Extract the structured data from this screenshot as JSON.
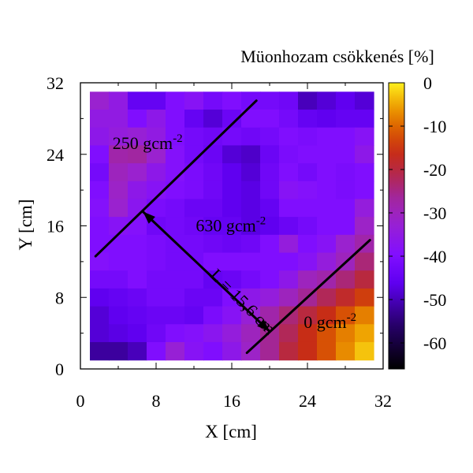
{
  "chart_data": {
    "type": "heatmap",
    "title": "",
    "xlabel": "X [cm]",
    "ylabel": "Y [cm]",
    "xlim": [
      0,
      32
    ],
    "ylim": [
      0,
      32
    ],
    "xticks": [
      "0",
      "8",
      "16",
      "24",
      "32"
    ],
    "yticks": [
      "0",
      "8",
      "16",
      "24",
      "32"
    ],
    "colorbar": {
      "label": "Müonhozam csökkenés [%]",
      "range": [
        -66,
        0
      ],
      "ticks": [
        "0",
        "-10",
        "-20",
        "-30",
        "-40",
        "-50",
        "-60"
      ]
    },
    "cell_size_cm": 2,
    "x_origin_cm": 1,
    "y_origin_cm": 1,
    "grid_cols": 15,
    "grid_rows": 15,
    "values_rows_top_to_bottom": [
      [
        -32,
        -35,
        -45,
        -45,
        -40,
        -38,
        -42,
        -40,
        -42,
        -42,
        -43,
        -50,
        -48,
        -46,
        -48
      ],
      [
        -35,
        -35,
        -40,
        -36,
        -40,
        -45,
        -48,
        -44,
        -40,
        -40,
        -42,
        -45,
        -46,
        -45,
        -45
      ],
      [
        -36,
        -34,
        -33,
        -35,
        -40,
        -42,
        -43,
        -42,
        -43,
        -42,
        -40,
        -41,
        -40,
        -40,
        -38
      ],
      [
        -40,
        -28,
        -27,
        -32,
        -39,
        -42,
        -44,
        -48,
        -49,
        -44,
        -41,
        -40,
        -40,
        -40,
        -36
      ],
      [
        -42,
        -30,
        -32,
        -36,
        -39,
        -41,
        -43,
        -46,
        -48,
        -43,
        -40,
        -42,
        -40,
        -41,
        -40
      ],
      [
        -40,
        -31,
        -36,
        -38,
        -40,
        -41,
        -43,
        -46,
        -47,
        -43,
        -38,
        -39,
        -40,
        -41,
        -40
      ],
      [
        -39,
        -32,
        -37,
        -41,
        -42,
        -44,
        -44,
        -46,
        -47,
        -45,
        -40,
        -40,
        -40,
        -40,
        -34
      ],
      [
        -40,
        -38,
        -39,
        -43,
        -42,
        -43,
        -45,
        -45,
        -47,
        -46,
        -44,
        -42,
        -40,
        -40,
        -31
      ],
      [
        -40,
        -40,
        -40,
        -41,
        -42,
        -42,
        -43,
        -44,
        -43,
        -40,
        -34,
        -40,
        -38,
        -32,
        -28
      ],
      [
        -39,
        -40,
        -40,
        -41,
        -42,
        -42,
        -40,
        -40,
        -40,
        -40,
        -40,
        -38,
        -34,
        -30,
        -24
      ],
      [
        -42,
        -42,
        -40,
        -42,
        -42,
        -42,
        -45,
        -44,
        -42,
        -40,
        -36,
        -30,
        -28,
        -24,
        -20
      ],
      [
        -46,
        -45,
        -44,
        -42,
        -42,
        -44,
        -44,
        -40,
        -36,
        -34,
        -30,
        -26,
        -22,
        -18,
        -14
      ],
      [
        -48,
        -46,
        -45,
        -44,
        -44,
        -45,
        -41,
        -38,
        -33,
        -28,
        -24,
        -20,
        -16,
        -12,
        -8
      ],
      [
        -48,
        -47,
        -46,
        -43,
        -40,
        -39,
        -37,
        -34,
        -30,
        -26,
        -22,
        -16,
        -12,
        -8,
        -5
      ],
      [
        -52,
        -52,
        -50,
        -40,
        -33,
        -38,
        -40,
        -36,
        -31,
        -26,
        -20,
        -16,
        -12,
        -7,
        -3
      ]
    ],
    "annotations": [
      {
        "text": "250 gcm",
        "sup": "-2",
        "x": 3.4,
        "y": 24.6
      },
      {
        "text": "630 gcm",
        "sup": "-2",
        "x": 12.2,
        "y": 15.4
      },
      {
        "text": "0 gcm",
        "sup": "-2",
        "x": 23.6,
        "y": 4.6
      },
      {
        "text": "L = 15,6 cm",
        "x": 13.6,
        "y": 10.4,
        "angle": 45
      }
    ],
    "lines": [
      {
        "name": "boundary-line-250",
        "x1": 1.6,
        "y1": 12.6,
        "x2": 18.6,
        "y2": 30.0
      },
      {
        "name": "boundary-line-0",
        "x1": 17.6,
        "y1": 1.8,
        "x2": 30.6,
        "y2": 14.4
      },
      {
        "name": "length-arrow",
        "x1": 6.6,
        "y1": 17.6,
        "x2": 20.0,
        "y2": 4.2,
        "arrows": "both"
      }
    ]
  }
}
